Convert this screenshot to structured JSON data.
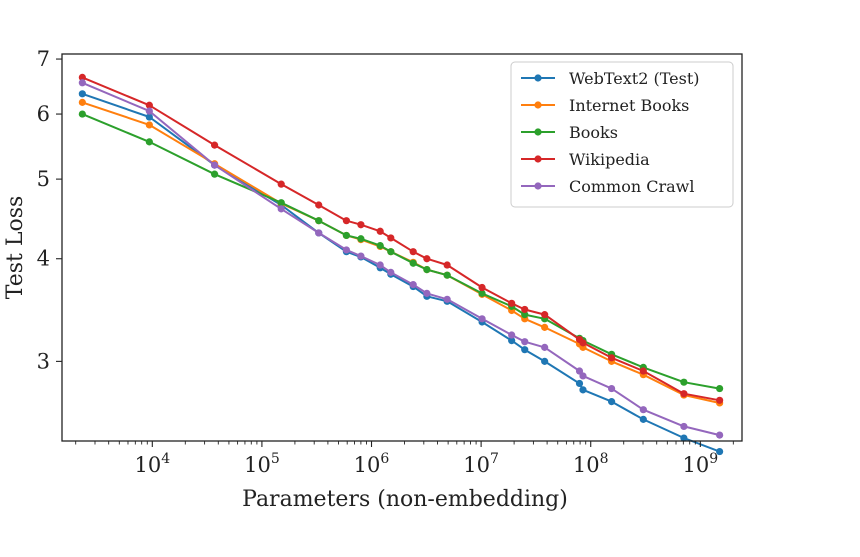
{
  "chart_data": {
    "type": "line",
    "title": "",
    "xlabel": "Parameters (non-embedding)",
    "ylabel": "Test Loss",
    "xscale": "log",
    "yscale": "log",
    "xlim": [
      1500,
      2400000000
    ],
    "ylim": [
      2.4,
      7.1
    ],
    "x_ticks": [
      {
        "value": 10000,
        "base": "10",
        "exp": "4"
      },
      {
        "value": 100000,
        "base": "10",
        "exp": "5"
      },
      {
        "value": 1000000,
        "base": "10",
        "exp": "6"
      },
      {
        "value": 10000000,
        "base": "10",
        "exp": "7"
      },
      {
        "value": 100000000,
        "base": "10",
        "exp": "8"
      },
      {
        "value": 1000000000,
        "base": "10",
        "exp": "9"
      }
    ],
    "y_ticks": [
      {
        "value": 3,
        "label": "3"
      },
      {
        "value": 4,
        "label": "4"
      },
      {
        "value": 5,
        "label": "5"
      },
      {
        "value": 6,
        "label": "6"
      },
      {
        "value": 7,
        "label": "7"
      }
    ],
    "legend_position": "top-right",
    "series": [
      {
        "name": "WebText2 (Test)",
        "color": "#1f77b4",
        "x": [
          2300,
          9400,
          37000,
          150000,
          330000,
          590000,
          800000,
          1200000,
          1500000,
          2400000,
          3200000,
          4900000,
          10200000,
          19000000,
          25000000,
          38000000,
          79000000,
          85000000,
          155000000,
          302000000,
          708000000,
          1500000000
        ],
        "y": [
          6.35,
          5.95,
          5.2,
          4.65,
          4.3,
          4.08,
          4.02,
          3.9,
          3.83,
          3.7,
          3.6,
          3.55,
          3.35,
          3.18,
          3.1,
          3.0,
          2.82,
          2.77,
          2.68,
          2.55,
          2.42,
          2.33
        ]
      },
      {
        "name": "Internet Books",
        "color": "#ff7f0e",
        "x": [
          2300,
          9400,
          37000,
          150000,
          330000,
          590000,
          800000,
          1200000,
          1500000,
          2400000,
          3200000,
          4900000,
          10200000,
          19000000,
          25000000,
          38000000,
          79000000,
          85000000,
          155000000,
          302000000,
          708000000,
          1500000000
        ],
        "y": [
          6.2,
          5.82,
          5.22,
          4.67,
          4.45,
          4.27,
          4.22,
          4.14,
          4.08,
          3.96,
          3.88,
          3.82,
          3.62,
          3.46,
          3.38,
          3.3,
          3.15,
          3.12,
          3.0,
          2.89,
          2.73,
          2.67
        ]
      },
      {
        "name": "Books",
        "color": "#2ca02c",
        "x": [
          2300,
          9400,
          37000,
          150000,
          330000,
          590000,
          800000,
          1200000,
          1500000,
          2400000,
          3200000,
          4900000,
          10200000,
          19000000,
          25000000,
          38000000,
          79000000,
          85000000,
          155000000,
          302000000,
          708000000,
          1500000000
        ],
        "y": [
          6.0,
          5.55,
          5.07,
          4.68,
          4.45,
          4.27,
          4.23,
          4.15,
          4.08,
          3.95,
          3.88,
          3.82,
          3.63,
          3.5,
          3.42,
          3.38,
          3.2,
          3.18,
          3.06,
          2.95,
          2.83,
          2.78
        ]
      },
      {
        "name": "Wikipedia",
        "color": "#d62728",
        "x": [
          2300,
          9400,
          37000,
          150000,
          330000,
          590000,
          800000,
          1200000,
          1500000,
          2400000,
          3200000,
          4900000,
          10200000,
          19000000,
          25000000,
          38000000,
          79000000,
          85000000,
          155000000,
          302000000,
          708000000,
          1500000000
        ],
        "y": [
          6.65,
          6.15,
          5.5,
          4.93,
          4.65,
          4.45,
          4.4,
          4.32,
          4.24,
          4.08,
          4.0,
          3.93,
          3.69,
          3.53,
          3.47,
          3.42,
          3.19,
          3.16,
          3.03,
          2.92,
          2.74,
          2.69
        ]
      },
      {
        "name": "Common Crawl",
        "color": "#9467bd",
        "x": [
          2300,
          9400,
          37000,
          150000,
          330000,
          590000,
          800000,
          1200000,
          1500000,
          2400000,
          3200000,
          4900000,
          10200000,
          19000000,
          25000000,
          38000000,
          79000000,
          85000000,
          155000000,
          302000000,
          708000000,
          1500000000
        ],
        "y": [
          6.55,
          6.05,
          5.2,
          4.6,
          4.3,
          4.1,
          4.03,
          3.93,
          3.85,
          3.72,
          3.63,
          3.57,
          3.38,
          3.23,
          3.17,
          3.12,
          2.92,
          2.88,
          2.78,
          2.62,
          2.5,
          2.44
        ]
      }
    ]
  }
}
